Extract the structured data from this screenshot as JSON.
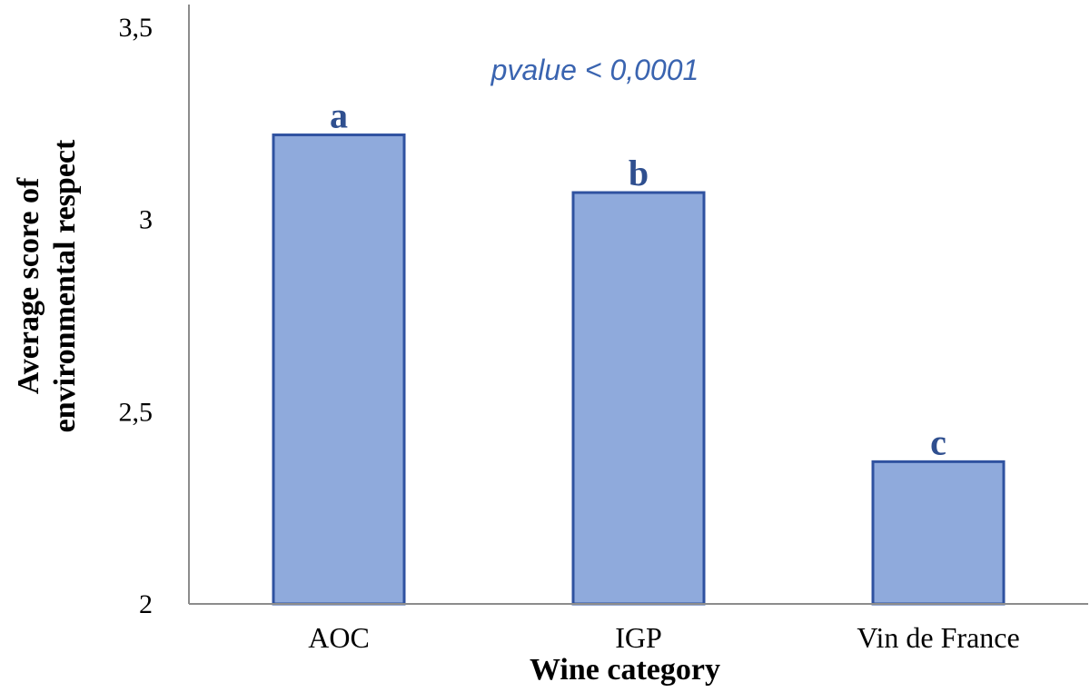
{
  "chart_data": {
    "type": "bar",
    "categories": [
      "AOC",
      "IGP",
      "Vin de France"
    ],
    "values": [
      3.22,
      3.07,
      2.37
    ],
    "significance_letters": [
      "a",
      "b",
      "c"
    ],
    "annotation": "pvalue < 0,0001",
    "xlabel": "Wine category",
    "ylabel_lines": [
      "Average score of",
      "environmental respect"
    ],
    "ylim": [
      2,
      3.5
    ],
    "yticks": [
      2,
      2.5,
      3,
      3.5
    ],
    "ytick_labels": [
      "2",
      "2,5",
      "3",
      "3,5"
    ],
    "grid": false,
    "legend": "none",
    "colors": {
      "bar_fill": "#8faadc",
      "bar_stroke": "#2f52a0",
      "letter": "#2f4f8f",
      "annotation": "#3a64b0",
      "axis": "#8c8c8c"
    }
  }
}
